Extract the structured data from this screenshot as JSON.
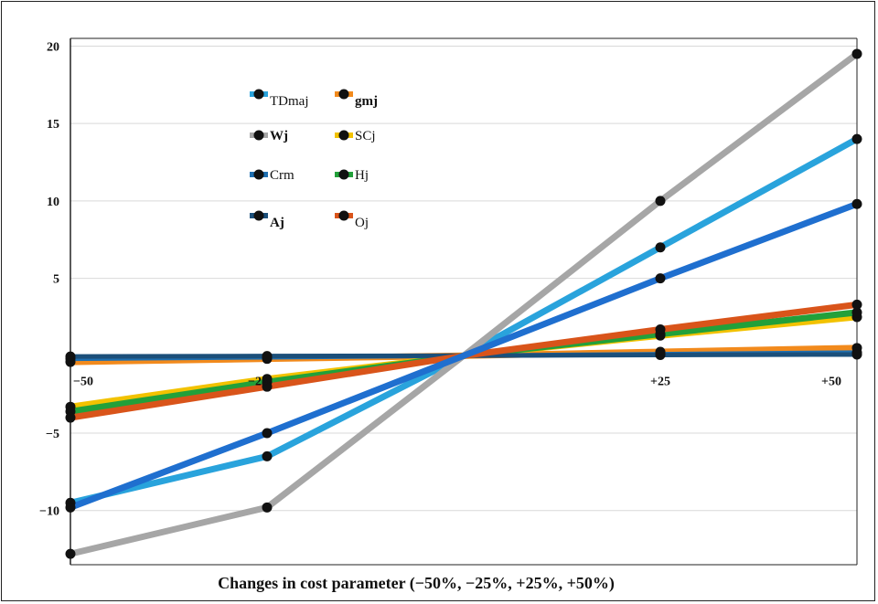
{
  "chart_data": {
    "type": "line",
    "x": [
      -50,
      -25,
      0,
      25,
      50
    ],
    "x_tick_labels": [
      "−50",
      "−25",
      "+25",
      "+50"
    ],
    "y_tick_labels": [
      "20",
      "15",
      "10",
      "5",
      "−5",
      "−10"
    ],
    "ylim": [
      -13.5,
      20.5
    ],
    "xlabel": "Changes in cost parameter (−50%, −25%, +25%, +50%)",
    "grid": true,
    "legend_position": "top-left",
    "series": [
      {
        "name": "TDmaj",
        "color": "#29a3dc",
        "values": [
          -9.5,
          -6.5,
          0,
          7,
          14
        ]
      },
      {
        "name": "gmj",
        "color": "#f28a1c",
        "values": [
          -0.4,
          -0.2,
          0,
          0.25,
          0.5
        ]
      },
      {
        "name": "Wj",
        "color": "#a6a6a6",
        "values": [
          -12.8,
          -9.8,
          0,
          10,
          19.5
        ]
      },
      {
        "name": "SCj",
        "color": "#f2c200",
        "values": [
          -3.3,
          -1.5,
          0,
          1.3,
          2.5
        ]
      },
      {
        "name": "Crm",
        "color": "#1f6fb0",
        "values": [
          -0.2,
          -0.1,
          0,
          0.1,
          0.2
        ]
      },
      {
        "name": "Hj",
        "color": "#22a03a",
        "values": [
          -3.6,
          -1.7,
          0,
          1.4,
          2.8
        ]
      },
      {
        "name": "Aj",
        "color": "#1b4f7a",
        "values": [
          -0.05,
          -0.02,
          0,
          0.05,
          0.08
        ]
      },
      {
        "name": "Oj",
        "color": "#d9541a",
        "values": [
          -4.0,
          -2.0,
          0,
          1.7,
          3.3
        ]
      },
      {
        "name": "",
        "color": "#1f6fcf",
        "values": [
          -9.8,
          -5.0,
          0,
          5.0,
          9.8
        ]
      }
    ]
  }
}
